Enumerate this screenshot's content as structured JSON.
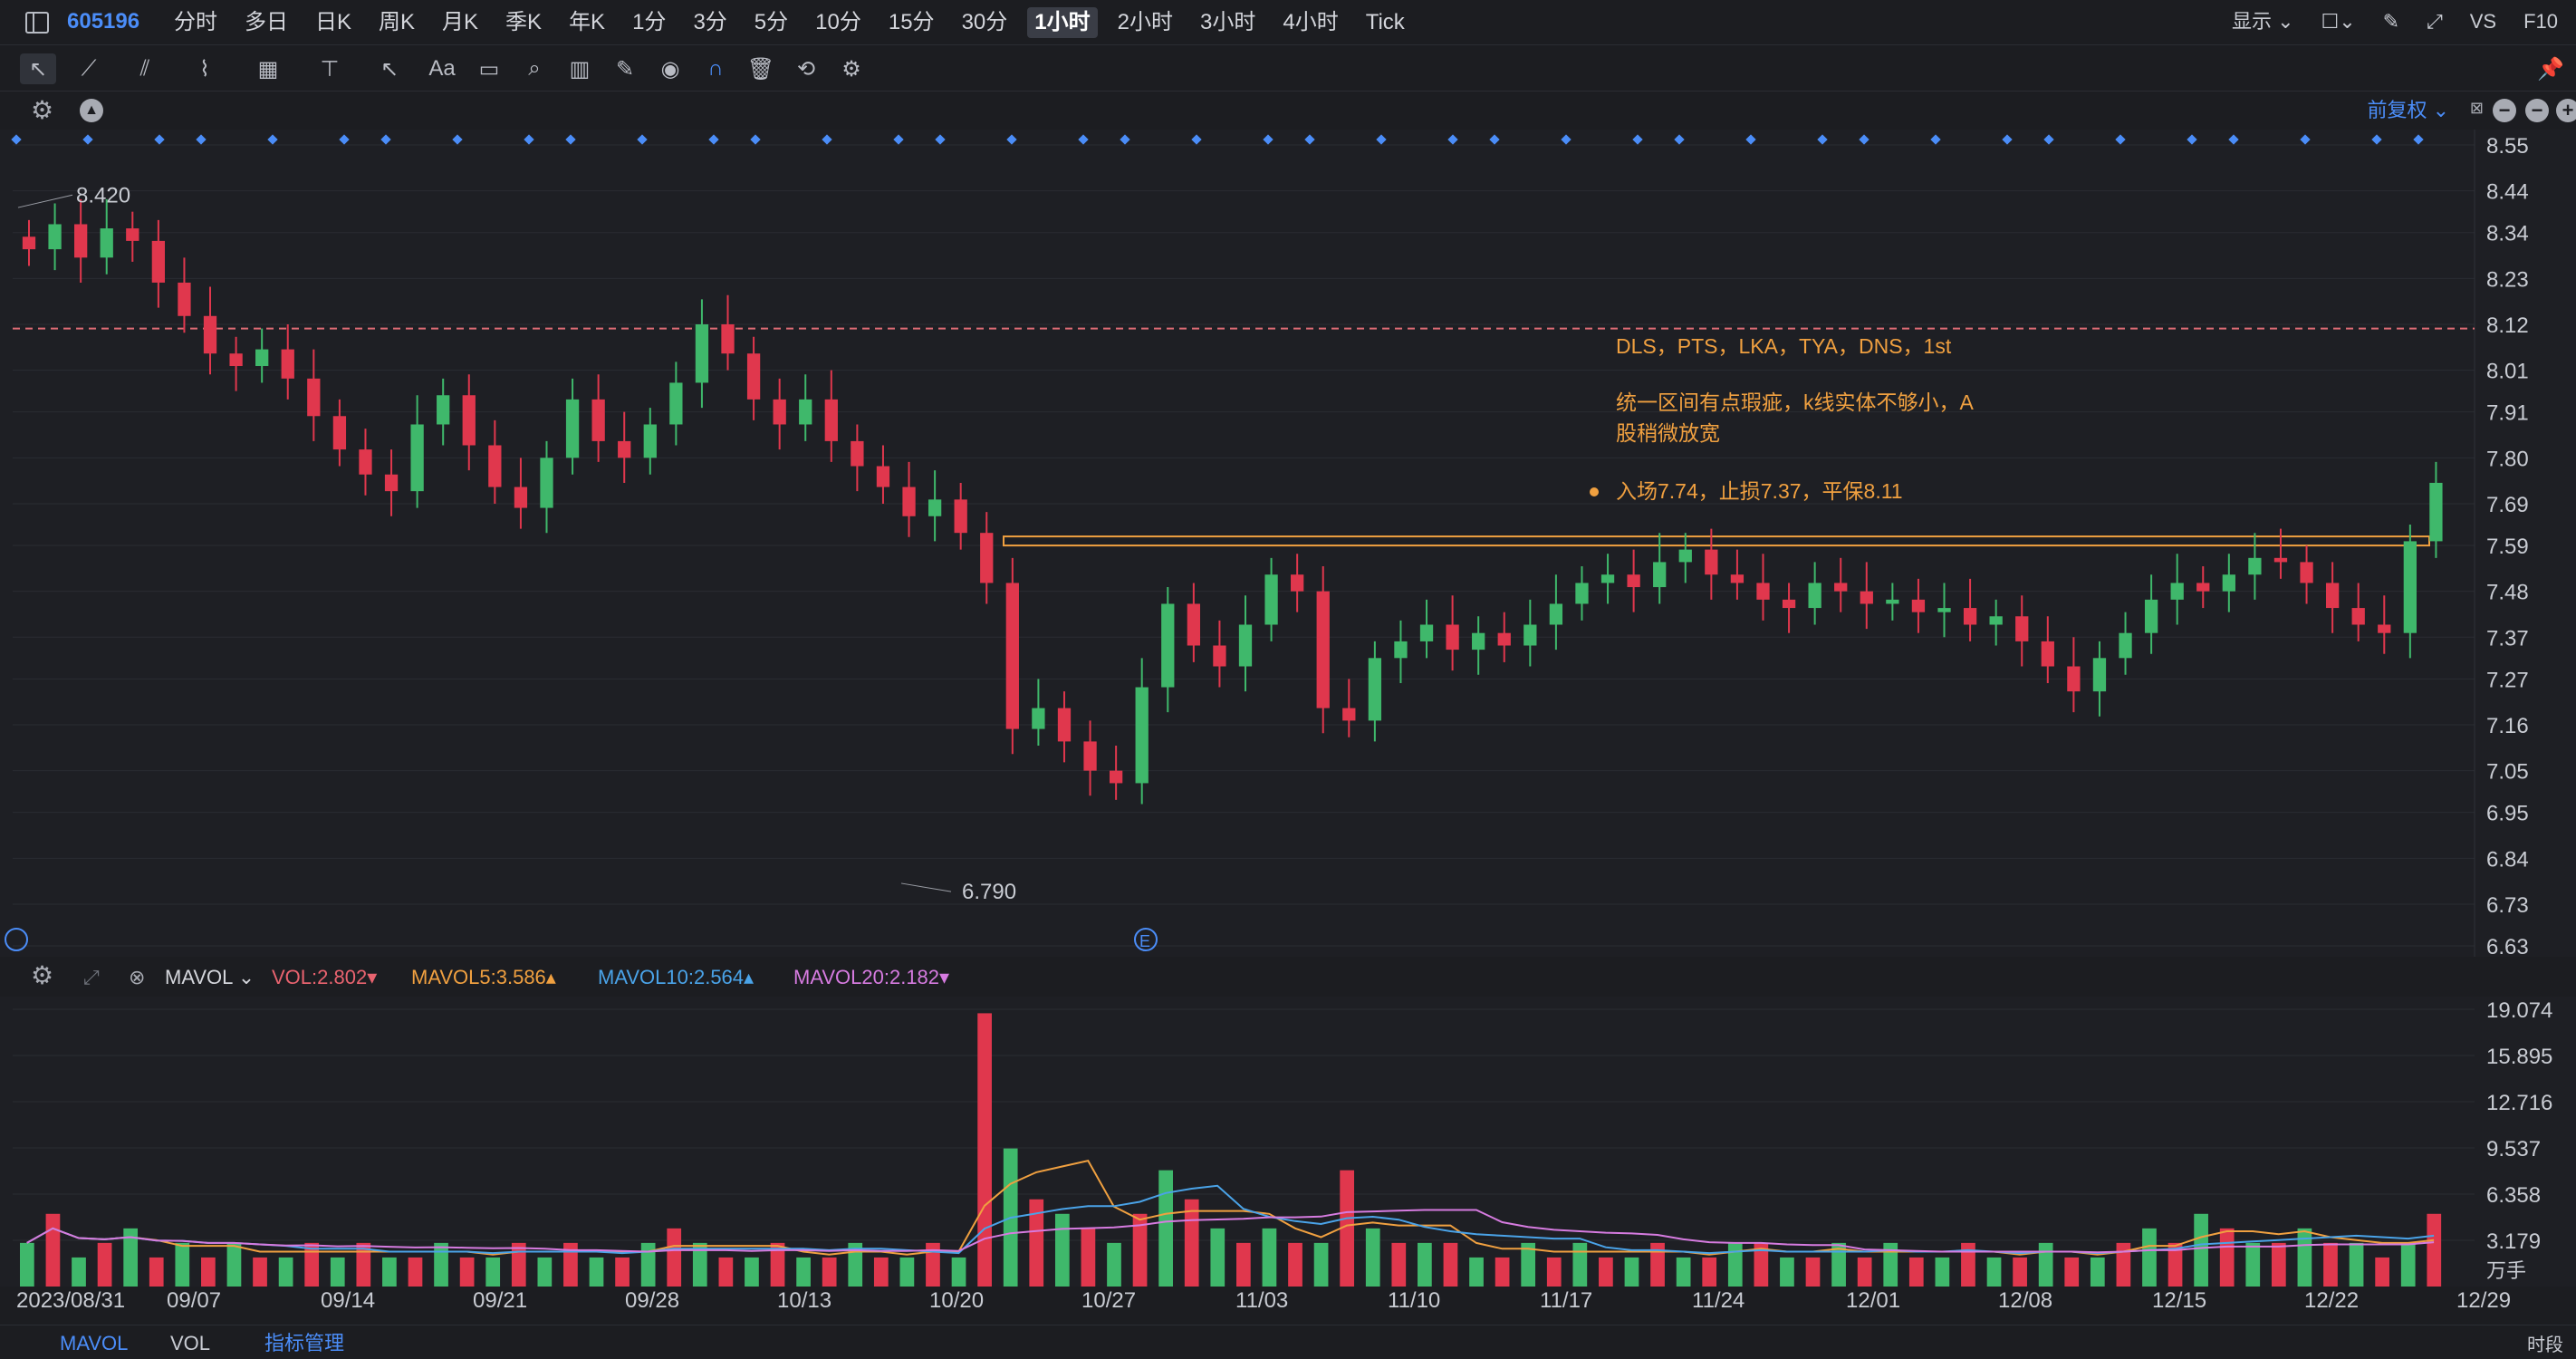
{
  "header": {
    "symbol": "605196",
    "timeframes": [
      "分时",
      "多日",
      "日K",
      "周K",
      "月K",
      "季K",
      "年K",
      "1分",
      "3分",
      "5分",
      "10分",
      "15分",
      "30分",
      "1小时",
      "2小时",
      "3小时",
      "4小时",
      "Tick"
    ],
    "active_timeframe": "1小时",
    "display_label": "显示",
    "vs_label": "VS",
    "f10_label": "F10"
  },
  "chart_toolbar": {
    "adjust_label": "前复权"
  },
  "chart_data": {
    "type": "candlestick",
    "price_axis_ticks": [
      "8.55",
      "8.44",
      "8.34",
      "8.23",
      "8.12",
      "8.01",
      "7.91",
      "7.80",
      "7.69",
      "7.59",
      "7.48",
      "7.37",
      "7.27",
      "7.16",
      "7.05",
      "6.95",
      "6.84",
      "6.73",
      "6.63"
    ],
    "ylim": [
      6.63,
      8.55
    ],
    "date_ticks": [
      "2023/08/31",
      "09/07",
      "09/14",
      "09/21",
      "09/28",
      "10/13",
      "10/20",
      "10/27",
      "11/03",
      "11/10",
      "11/17",
      "11/24",
      "12/01",
      "12/08",
      "12/15",
      "12/22",
      "12/29"
    ],
    "high_label": "8.420",
    "low_label": "6.790",
    "dashed_level": 8.11,
    "range_box": [
      7.585,
      7.605
    ],
    "annotations": [
      "DLS，PTS，LKA，TYA，DNS，1st",
      "统一区间有点瑕疵，k线实体不够小，A",
      "股稍微放宽",
      "入场7.74，止损7.37，平保8.11"
    ],
    "event_marker": "E",
    "closes_sampled": [
      8.3,
      8.36,
      8.28,
      8.35,
      8.32,
      8.22,
      8.14,
      8.05,
      8.02,
      8.06,
      7.99,
      7.9,
      7.82,
      7.76,
      7.72,
      7.88,
      7.95,
      7.83,
      7.73,
      7.68,
      7.8,
      7.94,
      7.84,
      7.8,
      7.88,
      7.98,
      8.12,
      8.05,
      7.94,
      7.88,
      7.94,
      7.84,
      7.78,
      7.73,
      7.66,
      7.7,
      7.62,
      7.5,
      7.15,
      7.2,
      7.12,
      7.05,
      7.02,
      7.25,
      7.45,
      7.35,
      7.3,
      7.4,
      7.52,
      7.48,
      7.2,
      7.17,
      7.32,
      7.36,
      7.4,
      7.34,
      7.38,
      7.35,
      7.4,
      7.45,
      7.5,
      7.52,
      7.49,
      7.55,
      7.58,
      7.52,
      7.5,
      7.46,
      7.44,
      7.5,
      7.48,
      7.45,
      7.46,
      7.43,
      7.44,
      7.4,
      7.42,
      7.36,
      7.3,
      7.24,
      7.32,
      7.38,
      7.46,
      7.5,
      7.48,
      7.52,
      7.56,
      7.55,
      7.5,
      7.44,
      7.4,
      7.38,
      7.6,
      7.74
    ]
  },
  "volume": {
    "indicator": "MAVOL",
    "vol": "VOL:2.802",
    "mavol5": "MAVOL5:3.586",
    "mavol10": "MAVOL10:2.564",
    "mavol20": "MAVOL20:2.182",
    "ticks": [
      "19.074",
      "15.895",
      "12.716",
      "9.537",
      "6.358",
      "3.179"
    ],
    "unit": "万手",
    "values_sampled": [
      3,
      5,
      2,
      3,
      4,
      2,
      3,
      2,
      3,
      2,
      2,
      3,
      2,
      3,
      2,
      2,
      3,
      2,
      2,
      3,
      2,
      3,
      2,
      2,
      3,
      4,
      3,
      2,
      2,
      3,
      2,
      2,
      3,
      2,
      2,
      3,
      2,
      18.8,
      9.5,
      6,
      5,
      4,
      3,
      5,
      8,
      6,
      4,
      3,
      4,
      3,
      3,
      8,
      4,
      3,
      3,
      3,
      2,
      2,
      3,
      2,
      3,
      2,
      2,
      3,
      2,
      2,
      3,
      3,
      2,
      2,
      3,
      2,
      3,
      2,
      2,
      3,
      2,
      2,
      3,
      2,
      2,
      3,
      4,
      3,
      5,
      4,
      3,
      3,
      4,
      3,
      3,
      2,
      3,
      5
    ],
    "colors": {
      "up": "#3fb86b",
      "down": "#e0374d",
      "vol_label": "#e8636f",
      "mavol5": "#f0a040",
      "mavol10": "#4aa3e8",
      "mavol20": "#d67be0"
    }
  },
  "bottom_tabs": [
    "MAVOL",
    "VOL",
    "指标管理"
  ],
  "period_label": "时段"
}
